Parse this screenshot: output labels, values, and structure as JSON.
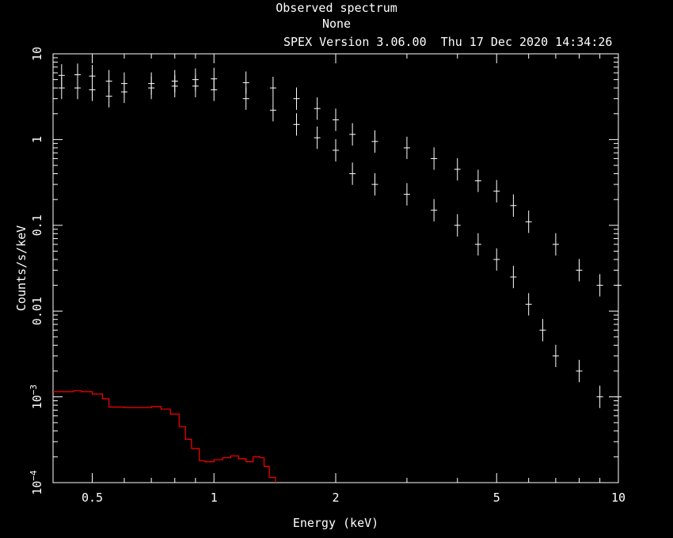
{
  "header": {
    "title": "Observed spectrum",
    "subtitle": "None",
    "version_line": "SPEX Version 3.06.00  Thu 17 Dec 2020 14:34:26"
  },
  "chart_data": {
    "type": "scatter",
    "xlabel": "Energy (keV)",
    "ylabel": "Counts/s/keV",
    "xscale": "log",
    "yscale": "log",
    "xlim": [
      0.4,
      10
    ],
    "ylim": [
      0.0001,
      10
    ],
    "grid": false,
    "colors": {
      "background": "#000000",
      "axes": "#ffffff",
      "data": "#ffffff",
      "model": "#ff0000"
    },
    "x_ticks": [
      {
        "value": 0.5,
        "label": "0.5"
      },
      {
        "value": 1,
        "label": "1"
      },
      {
        "value": 2,
        "label": "2"
      },
      {
        "value": 5,
        "label": "5"
      },
      {
        "value": 10,
        "label": "10"
      }
    ],
    "y_ticks": [
      {
        "value": 10,
        "label": "10",
        "sup": ""
      },
      {
        "value": 1,
        "label": "1",
        "sup": ""
      },
      {
        "value": 0.1,
        "label": "0.1",
        "sup": ""
      },
      {
        "value": 0.01,
        "label": "0.01",
        "sup": ""
      },
      {
        "value": 0.001,
        "label": "10",
        "sup": "−3"
      },
      {
        "value": 0.0001,
        "label": "10",
        "sup": "−4"
      }
    ],
    "series": [
      {
        "style": "points",
        "color": "#ffffff",
        "x": [
          0.42,
          0.46,
          0.5,
          0.55,
          0.6,
          0.7,
          0.8,
          0.9,
          1.0,
          1.2,
          1.4,
          1.6,
          1.8,
          2.0,
          2.2,
          2.5,
          3.0,
          3.5,
          4.0,
          4.5,
          5.0,
          5.5,
          6.0,
          7.0,
          8.0,
          9.0,
          10.0
        ],
        "y": [
          5.6,
          5.7,
          5.5,
          4.8,
          4.5,
          4.5,
          4.8,
          5.0,
          5.1,
          4.6,
          4.0,
          3.0,
          2.3,
          1.7,
          1.15,
          0.95,
          0.8,
          0.6,
          0.45,
          0.33,
          0.25,
          0.17,
          0.11,
          0.06,
          0.03,
          0.02,
          0.02
        ]
      },
      {
        "style": "points",
        "color": "#ffffff",
        "x": [
          0.42,
          0.46,
          0.5,
          0.55,
          0.6,
          0.7,
          0.8,
          0.9,
          1.0,
          1.2,
          1.4,
          1.6,
          1.8,
          2.0,
          2.2,
          2.5,
          3.0,
          3.5,
          4.0,
          4.5,
          5.0,
          5.5,
          6.0,
          6.5,
          7.0,
          8.0,
          9.0,
          10.0
        ],
        "y": [
          4.0,
          4.0,
          3.8,
          3.2,
          3.6,
          4.0,
          4.2,
          4.2,
          3.8,
          3.0,
          2.2,
          1.5,
          1.05,
          0.75,
          0.4,
          0.3,
          0.23,
          0.15,
          0.1,
          0.06,
          0.04,
          0.025,
          0.012,
          0.006,
          0.003,
          0.002,
          0.001,
          0.001
        ]
      },
      {
        "style": "steps",
        "color": "#ff0000",
        "x": [
          0.4,
          0.45,
          0.47,
          0.5,
          0.53,
          0.55,
          0.6,
          0.65,
          0.7,
          0.74,
          0.78,
          0.82,
          0.85,
          0.88,
          0.92,
          0.95,
          1.0,
          1.05,
          1.1,
          1.15,
          1.2,
          1.25,
          1.3,
          1.33,
          1.37,
          1.42
        ],
        "y": [
          0.00115,
          0.00118,
          0.00115,
          0.00108,
          0.00095,
          0.00076,
          0.00075,
          0.00075,
          0.00077,
          0.00072,
          0.00063,
          0.00045,
          0.00032,
          0.00025,
          0.00018,
          0.000175,
          0.000185,
          0.000195,
          0.000205,
          0.00019,
          0.000175,
          0.0002,
          0.000195,
          0.000155,
          0.000115,
          0.0001
        ]
      }
    ]
  }
}
